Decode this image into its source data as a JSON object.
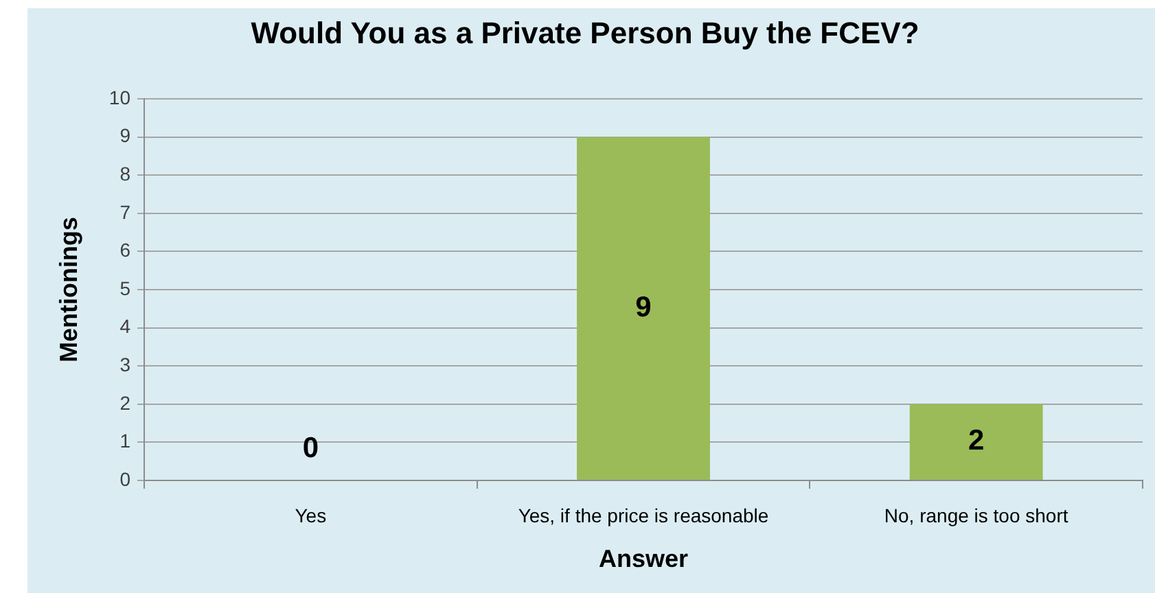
{
  "chart_data": {
    "type": "bar",
    "title": "Would You as a Private Person Buy the FCEV?",
    "xlabel": "Answer",
    "ylabel": "Mentionings",
    "categories": [
      "Yes",
      "Yes, if the price is reasonable",
      "No, range is too short"
    ],
    "values": [
      0,
      9,
      2
    ],
    "color": "#9bbb59",
    "ylim": [
      0,
      10
    ],
    "yticks": [
      0,
      1,
      2,
      3,
      4,
      5,
      6,
      7,
      8,
      9,
      10
    ],
    "grid": "y",
    "data_labels": true,
    "legend": false
  }
}
